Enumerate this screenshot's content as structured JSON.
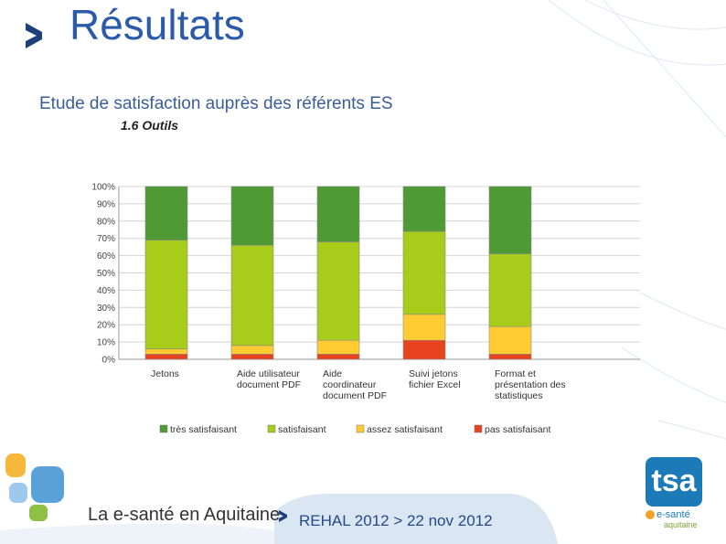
{
  "header": {
    "title": "Résultats",
    "subtitle": "Etude de satisfaction auprès des  référents ES",
    "section": "1.6  Outils"
  },
  "chart_data": {
    "type": "bar",
    "stacked": true,
    "categories": [
      [
        "Jetons"
      ],
      [
        "Aide utilisateur",
        "document PDF"
      ],
      [
        "Aide",
        "coordinateur",
        "document PDF"
      ],
      [
        "Suivi jetons",
        "fichier Excel"
      ],
      [
        "Format et",
        "présentation des",
        "statistiques"
      ]
    ],
    "series": [
      {
        "name": "pas satisfaisant",
        "color": "#e8431f",
        "values": [
          3,
          3,
          3,
          11,
          3
        ]
      },
      {
        "name": "assez satisfaisant",
        "color": "#ffcc33",
        "values": [
          3,
          5,
          8,
          15,
          16
        ]
      },
      {
        "name": "satisfaisant",
        "color": "#a8cc1a",
        "values": [
          63,
          58,
          57,
          48,
          42
        ]
      },
      {
        "name": "très satisfaisant",
        "color": "#4f9a34",
        "values": [
          31,
          34,
          32,
          26,
          39
        ]
      }
    ],
    "legend_order": [
      "très satisfaisant",
      "satisfaisant",
      "assez satisfaisant",
      "pas satisfaisant"
    ],
    "yticks": [
      "0%",
      "10%",
      "20%",
      "30%",
      "40%",
      "50%",
      "60%",
      "70%",
      "80%",
      "90%",
      "100%"
    ],
    "ylim": [
      0,
      100
    ],
    "grid": true,
    "legend_position": "bottom"
  },
  "footer": {
    "brand": "La e-santé en Aquitaine",
    "event": "REHAL 2012 > 22 nov 2012"
  },
  "logo": {
    "tsa": "tsa",
    "esante": "e-santé",
    "region": "aquitaine"
  },
  "colors": {
    "title": "#2a5aa8",
    "accent_blue": "#1d7ab8"
  }
}
